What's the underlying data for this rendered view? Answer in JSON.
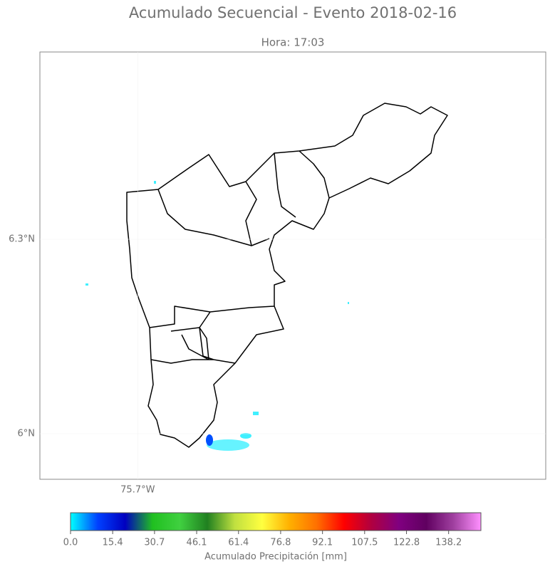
{
  "title": "Acumulado Secuencial - Evento 2018-02-16",
  "subtitle": "Hora: 17:03",
  "map": {
    "xlim": [
      -75.851,
      -75.0703
    ],
    "ylim": [
      5.9297,
      6.589
    ],
    "xticks": [
      {
        "value": -75.7,
        "label": "75.7°W"
      }
    ],
    "yticks": [
      {
        "value": 6.3,
        "label": "6.3°N"
      },
      {
        "value": 6,
        "label": "6°N"
      }
    ]
  },
  "colorbar": {
    "label": "Acumulado Precipitación [mm]",
    "lim": [
      0,
      150
    ],
    "ticks": [
      {
        "value": 0,
        "label": "0.0"
      },
      15.4,
      30.7,
      46.1,
      61.4,
      76.8,
      92.1,
      107.5,
      122.8,
      138.2
    ],
    "colors": [
      "#00ffff",
      "#0040ff",
      "#0000c0",
      "#20c020",
      "#40d040",
      "#208020",
      "#c0e040",
      "#ffff40",
      "#ffb000",
      "#ff7000",
      "#ff0000",
      "#b00040",
      "#800080",
      "#600060",
      "#a040a0",
      "#ff90ff"
    ]
  }
}
